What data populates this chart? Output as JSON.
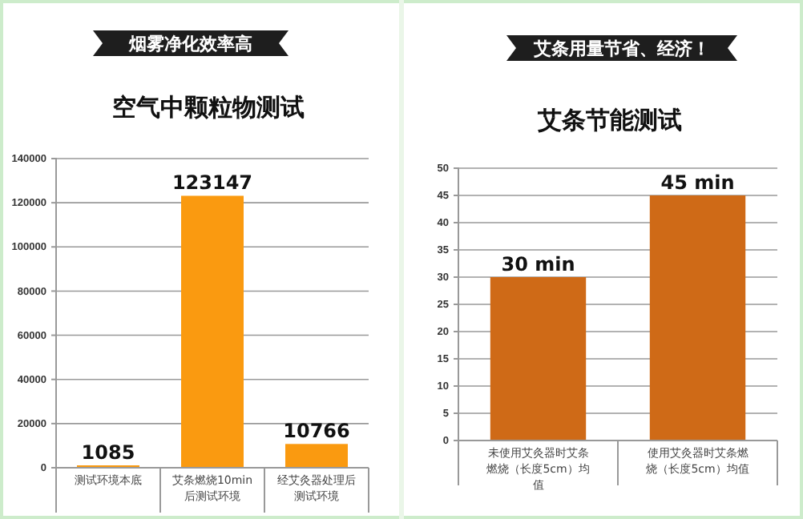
{
  "chart_data": [
    {
      "type": "bar",
      "title": "烟雾净化效率高",
      "subtitle": "空气中颗粒物测试",
      "categories": [
        "测试环境本底",
        "艾条燃烧10min后测试环境",
        "经艾灸器处理后测试环境"
      ],
      "values": [
        1085,
        123147,
        10766
      ],
      "color": "#fa9a10",
      "ylim": [
        0,
        140000
      ],
      "yticks": [
        0,
        20000,
        40000,
        60000,
        80000,
        100000,
        120000,
        140000
      ],
      "grid": "y",
      "data_labels": true
    },
    {
      "type": "bar",
      "title": "艾条用量节省、经济！",
      "subtitle": "艾条节能测试",
      "categories": [
        "未使用艾灸器时艾条燃烧（长度5cm）均值",
        "使用艾灸器时艾条燃烧（长度5cm）均值"
      ],
      "values": [
        30,
        45
      ],
      "value_labels": [
        "30 min",
        "45 min"
      ],
      "color": "#cf6a17",
      "ylim": [
        0,
        50
      ],
      "yticks": [
        0,
        5,
        10,
        15,
        20,
        25,
        30,
        35,
        40,
        45,
        50
      ],
      "grid": "y"
    }
  ]
}
